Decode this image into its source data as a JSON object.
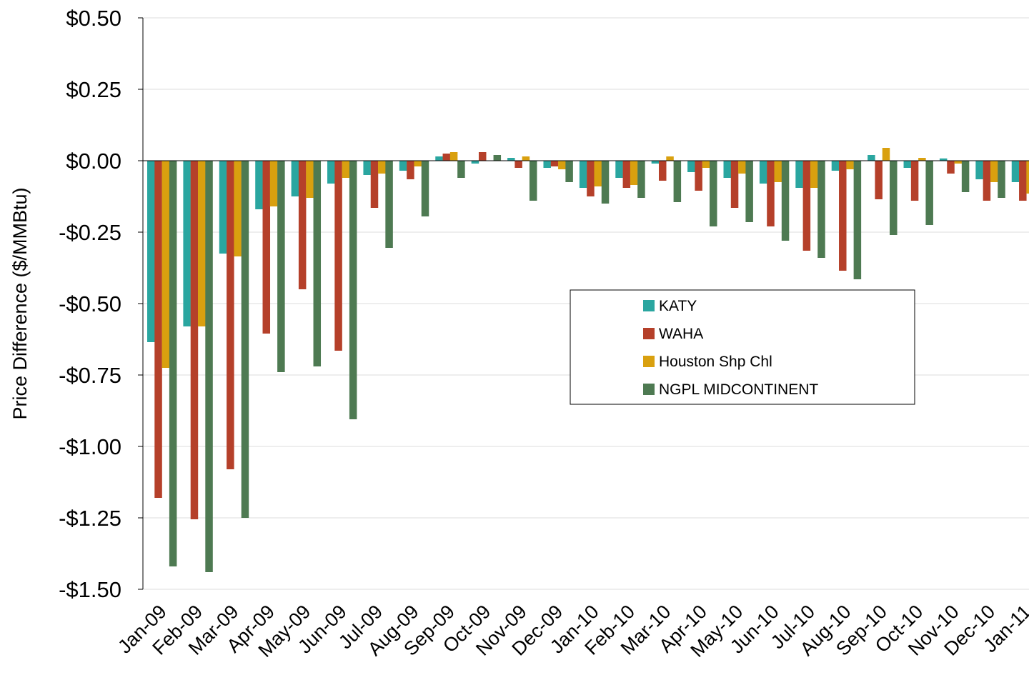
{
  "chart_data": {
    "type": "bar",
    "ylabel": "Price Difference  ($/MMBtu)",
    "xlabel": "",
    "ylim": [
      -1.5,
      0.5
    ],
    "yticks": [
      0.5,
      0.25,
      0.0,
      -0.25,
      -0.5,
      -0.75,
      -1.0,
      -1.25,
      -1.5
    ],
    "ytick_labels": [
      "$0.50",
      "$0.25",
      "$0.00",
      "-$0.25",
      "-$0.50",
      "-$0.75",
      "-$1.00",
      "-$1.25",
      "-$1.50"
    ],
    "grid": true,
    "legend_position": "center-right",
    "categories": [
      "Jan-09",
      "Feb-09",
      "Mar-09",
      "Apr-09",
      "May-09",
      "Jun-09",
      "Jul-09",
      "Aug-09",
      "Sep-09",
      "Oct-09",
      "Nov-09",
      "Dec-09",
      "Jan-10",
      "Feb-10",
      "Mar-10",
      "Apr-10",
      "May-10",
      "Jun-10",
      "Jul-10",
      "Aug-10",
      "Sep-10",
      "Oct-10",
      "Nov-10",
      "Dec-10",
      "Jan-11"
    ],
    "series": [
      {
        "name": "KATY",
        "color": "#2aa6a0",
        "values": [
          -0.635,
          -0.58,
          -0.325,
          -0.17,
          -0.125,
          -0.08,
          -0.05,
          -0.035,
          0.015,
          -0.01,
          0.01,
          -0.025,
          -0.095,
          -0.06,
          -0.01,
          -0.04,
          -0.06,
          -0.08,
          -0.095,
          -0.035,
          0.02,
          -0.025,
          0.008,
          -0.065,
          -0.075
        ]
      },
      {
        "name": "WAHA",
        "color": "#b5402a",
        "values": [
          -1.18,
          -1.255,
          -1.08,
          -0.605,
          -0.45,
          -0.665,
          -0.165,
          -0.065,
          0.025,
          0.03,
          -0.025,
          -0.02,
          -0.125,
          -0.095,
          -0.07,
          -0.105,
          -0.165,
          -0.23,
          -0.315,
          -0.385,
          -0.135,
          -0.14,
          -0.045,
          -0.14,
          -0.14
        ]
      },
      {
        "name": "Houston Shp Chl",
        "color": "#d9a00f",
        "values": [
          -0.725,
          -0.58,
          -0.335,
          -0.16,
          -0.13,
          -0.06,
          -0.045,
          -0.02,
          0.03,
          0.0,
          0.015,
          -0.03,
          -0.09,
          -0.085,
          0.015,
          -0.025,
          -0.045,
          -0.075,
          -0.095,
          -0.03,
          0.045,
          0.01,
          -0.01,
          -0.075,
          -0.115
        ]
      },
      {
        "name": "NGPL MIDCONTINENT",
        "color": "#4e7a52",
        "values": [
          -1.42,
          -1.44,
          -1.25,
          -0.74,
          -0.72,
          -0.905,
          -0.305,
          -0.195,
          -0.06,
          0.02,
          -0.14,
          -0.075,
          -0.15,
          -0.13,
          -0.145,
          -0.23,
          -0.215,
          -0.28,
          -0.34,
          -0.415,
          -0.26,
          -0.225,
          -0.11,
          -0.13,
          null
        ]
      }
    ]
  }
}
